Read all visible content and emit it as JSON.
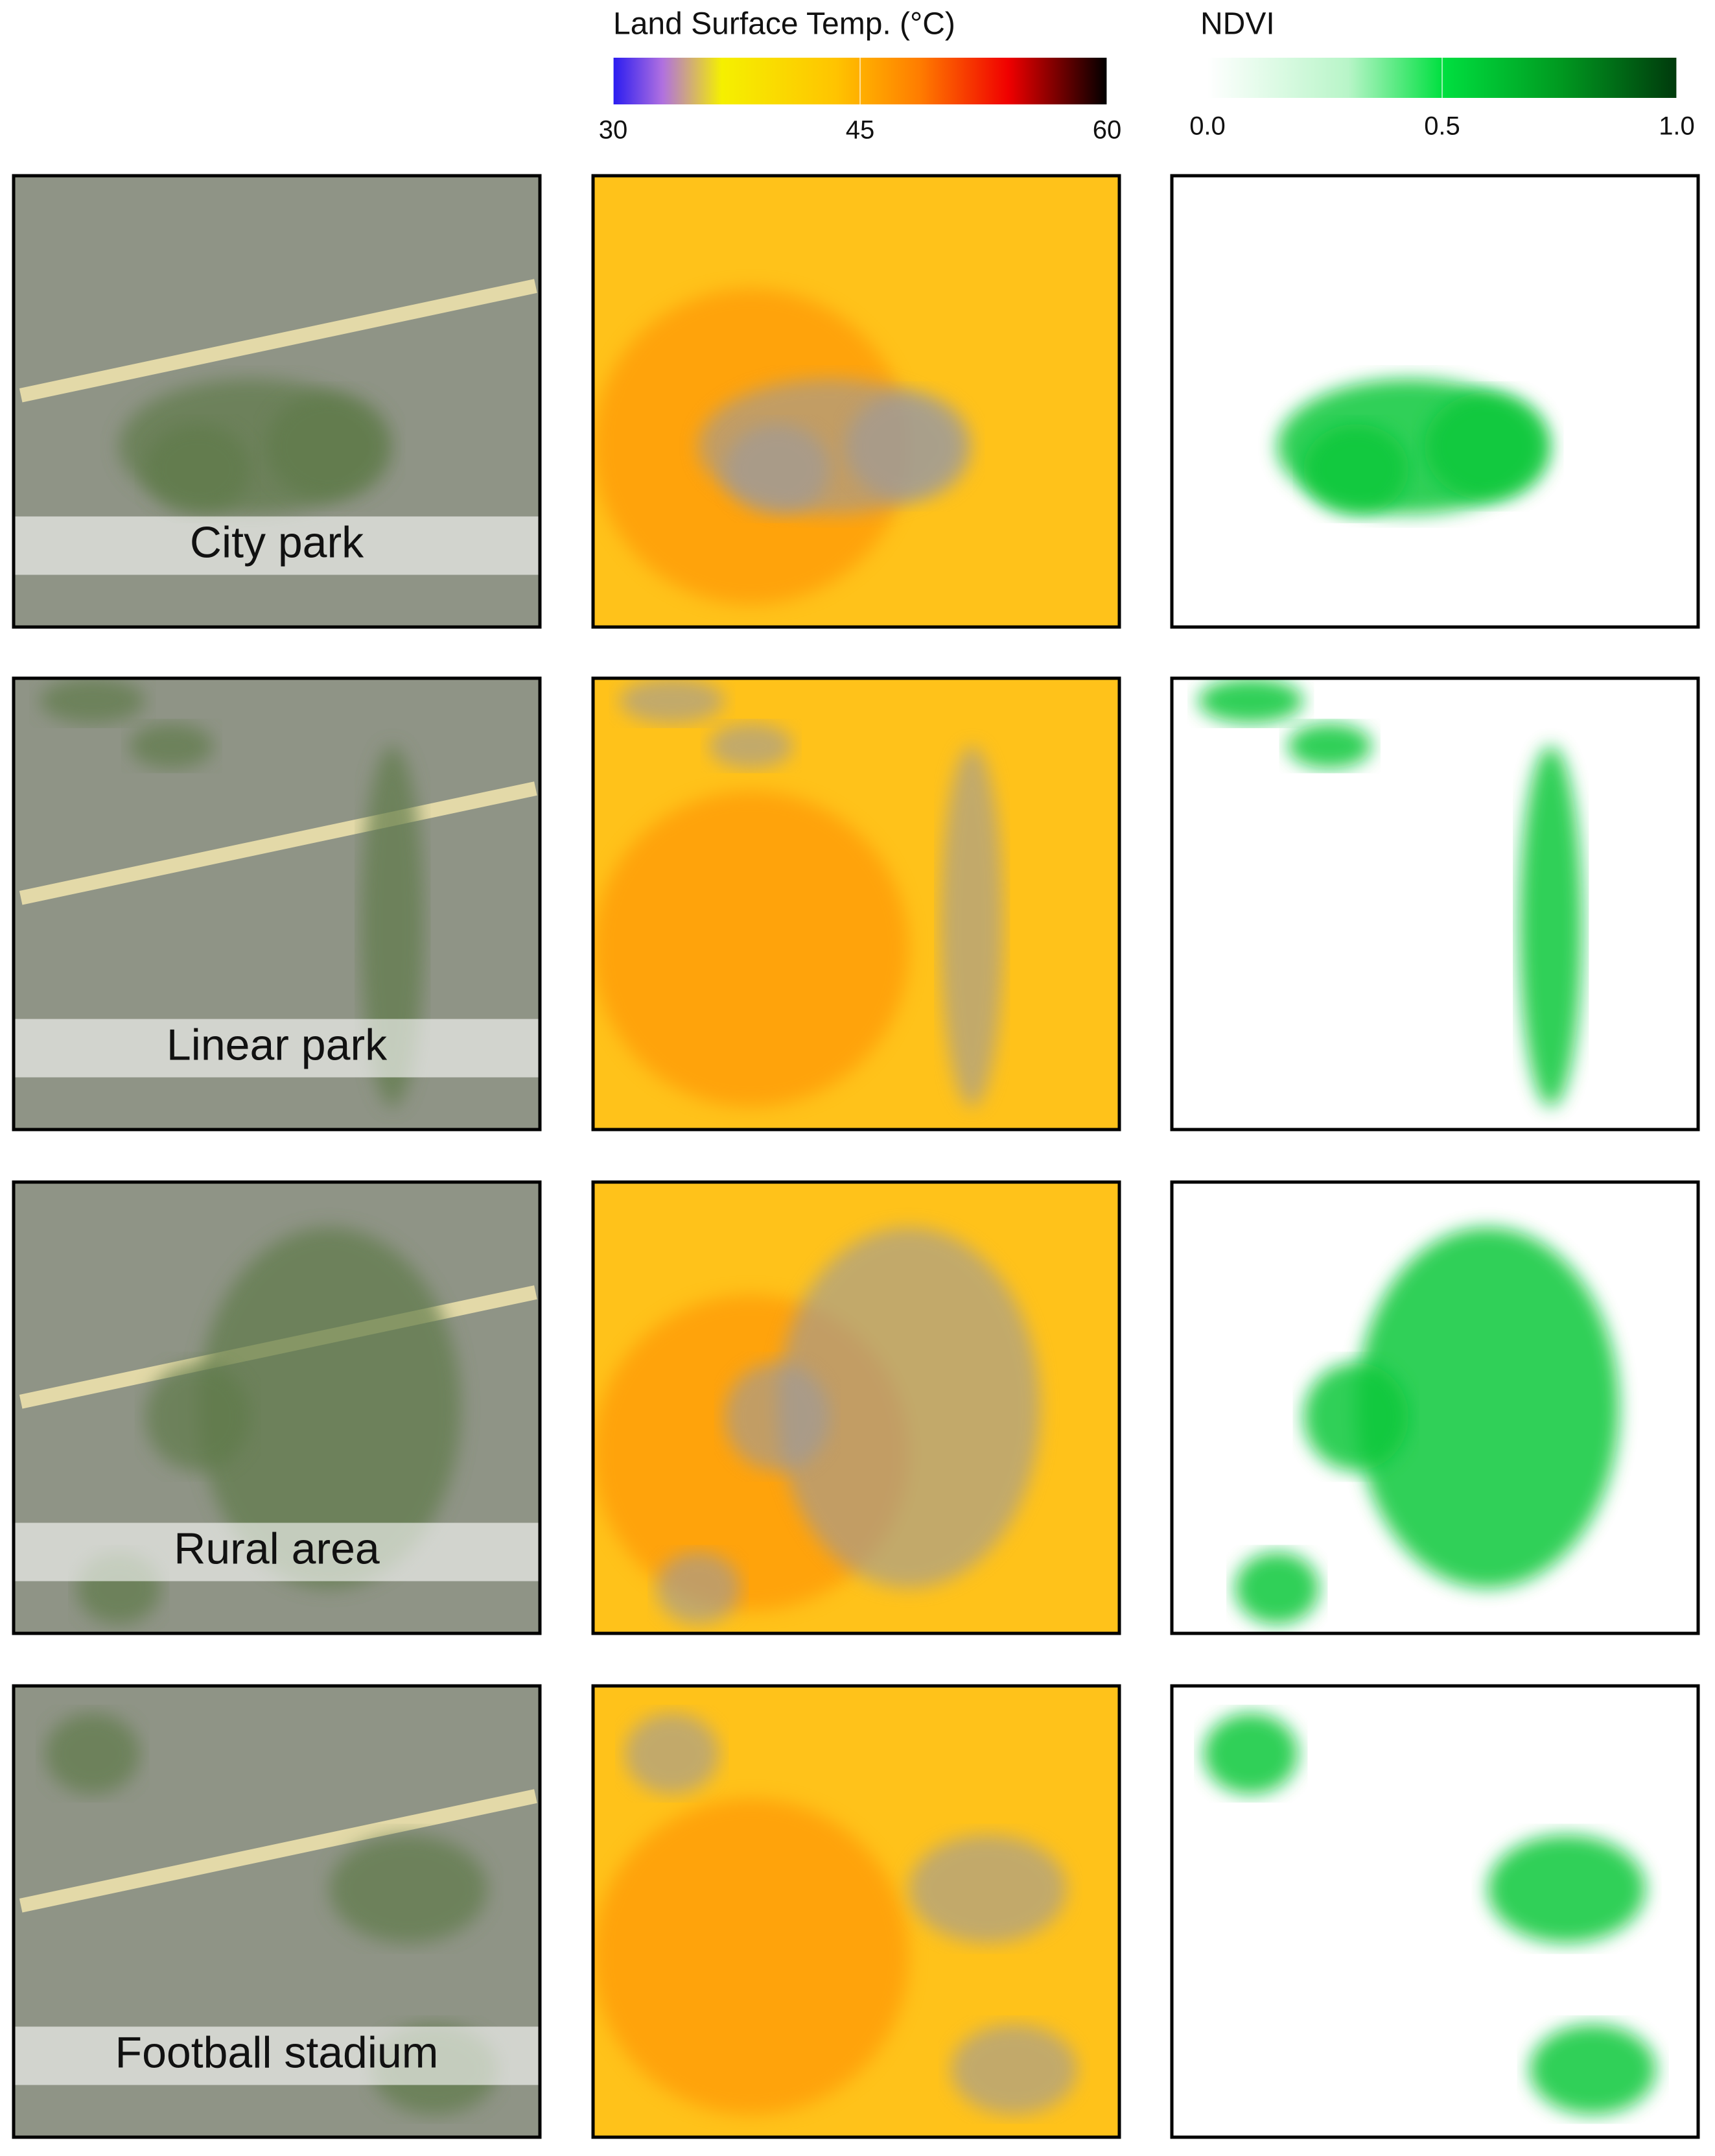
{
  "legends": [
    {
      "title": "Land Surface Temp. (°C)",
      "lim": [
        30,
        60
      ],
      "ticks": [
        30,
        45,
        60
      ]
    },
    {
      "title": "NDVI",
      "lim": [
        0,
        1
      ],
      "ticks": [
        {
          "value": 0,
          "label": "0.0"
        },
        0.5,
        {
          "value": 1,
          "label": "1.0"
        }
      ]
    }
  ],
  "rows": [
    {
      "label": "City park"
    },
    {
      "label": "Linear park"
    },
    {
      "label": "Rural area"
    },
    {
      "label": "Football stadium"
    }
  ]
}
